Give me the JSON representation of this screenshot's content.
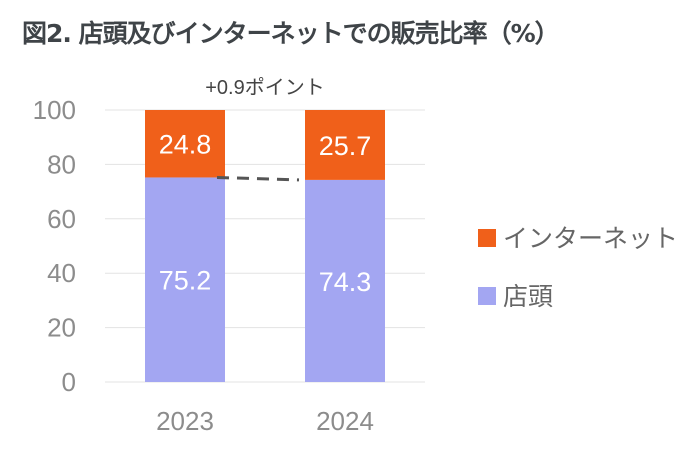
{
  "title": "図2. 店頭及びインターネットでの販売比率（%）",
  "chart_data": {
    "type": "bar",
    "stacked": true,
    "title": "図2. 店頭及びインターネットでの販売比率（%）",
    "categories": [
      "2023",
      "2024"
    ],
    "series": [
      {
        "name": "店頭",
        "values": [
          75.2,
          74.3
        ],
        "color": "#a3a6f2"
      },
      {
        "name": "インターネット",
        "values": [
          24.8,
          25.7
        ],
        "color": "#f0601a"
      }
    ],
    "ylim": [
      0,
      100
    ],
    "yticks": [
      0,
      20,
      40,
      60,
      80,
      100
    ],
    "grid": true,
    "legend": "right",
    "annotation": "+0.9ポイント",
    "xlabel": "",
    "ylabel": ""
  }
}
